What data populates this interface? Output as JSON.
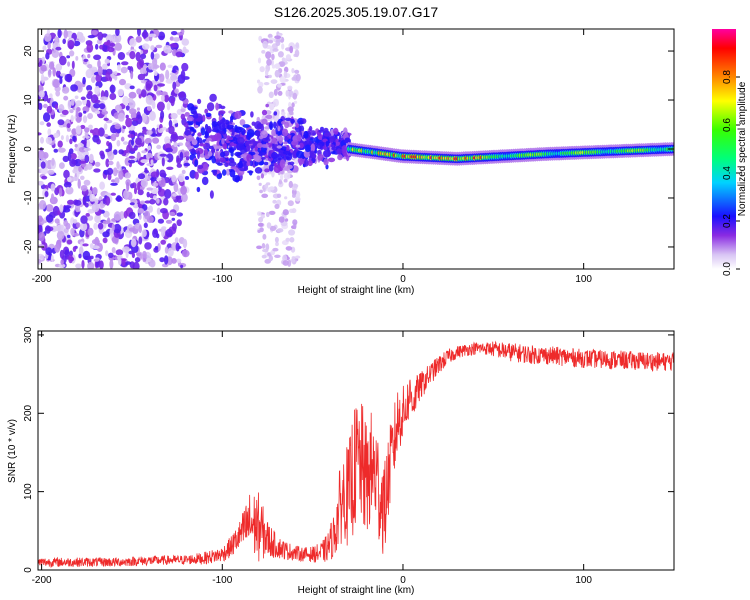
{
  "figure": {
    "title": "S126.2025.305.19.07.G17"
  },
  "chart_data": [
    {
      "type": "heatmap",
      "title": "S126.2025.305.19.07.G17",
      "xlabel": "Height of straight line (km)",
      "ylabel": "Frequency (Hz)",
      "xlim": [
        -202,
        150
      ],
      "ylim": [
        -24.5,
        24.5
      ],
      "xticks": [
        -200,
        -100,
        0,
        100
      ],
      "yticks": [
        -20,
        -10,
        0,
        10,
        20
      ],
      "colorbar": {
        "label": "Normalized spectral amplitude",
        "range": [
          0.0,
          1.0
        ],
        "ticks": [
          "0.0",
          "0.2",
          "0.4",
          "0.6",
          "0.8"
        ]
      },
      "features": [
        {
          "name": "scattered noise",
          "x_range": [
            -202,
            -120
          ],
          "freq_range": [
            -24,
            24
          ],
          "amplitude": 0.15
        },
        {
          "name": "diffuse band",
          "x_range": [
            -80,
            -58
          ],
          "freq_range": [
            -24,
            24
          ],
          "amplitude": 0.08
        },
        {
          "name": "converging region",
          "x_range": [
            -120,
            -30
          ],
          "freq_range": [
            -10,
            10
          ],
          "amplitude": 0.2
        },
        {
          "name": "coherent line",
          "x_range": [
            -30,
            150
          ],
          "freq_center": [
            0,
            -1.5,
            -2,
            -1,
            0
          ],
          "peak_amplitude": 1.0
        }
      ]
    },
    {
      "type": "line",
      "title": "",
      "xlabel": "Height of straight line (km)",
      "ylabel": "SNR (10 * v/v)",
      "xlim": [
        -202,
        150
      ],
      "ylim": [
        0,
        305
      ],
      "xticks": [
        -200,
        -100,
        0,
        100
      ],
      "yticks": [
        0,
        100,
        200,
        300
      ],
      "series": [
        {
          "name": "SNR",
          "color": "#ee2a2a",
          "x": [
            -202,
            -180,
            -160,
            -140,
            -120,
            -110,
            -100,
            -95,
            -90,
            -85,
            -80,
            -75,
            -70,
            -65,
            -60,
            -55,
            -50,
            -45,
            -42,
            -38,
            -35,
            -32,
            -30,
            -28,
            -25,
            -22,
            -20,
            -18,
            -15,
            -12,
            -10,
            -8,
            -5,
            -3,
            0,
            2,
            4,
            6,
            8,
            10,
            15,
            20,
            25,
            30,
            35,
            40,
            45,
            50,
            60,
            70,
            80,
            90,
            100,
            110,
            120,
            130,
            140,
            150
          ],
          "values": [
            10,
            10,
            10,
            12,
            13,
            15,
            20,
            30,
            45,
            60,
            55,
            40,
            30,
            25,
            22,
            20,
            20,
            22,
            28,
            45,
            80,
            100,
            90,
            120,
            140,
            130,
            110,
            130,
            120,
            90,
            80,
            120,
            160,
            190,
            200,
            210,
            225,
            215,
            230,
            235,
            250,
            262,
            272,
            278,
            281,
            283,
            283,
            282,
            278,
            275,
            274,
            272,
            270,
            269,
            268,
            267,
            266,
            266
          ],
          "noise_amplitude": [
            6,
            6,
            6,
            6,
            6,
            8,
            10,
            14,
            20,
            40,
            45,
            25,
            15,
            12,
            10,
            9,
            10,
            14,
            18,
            30,
            50,
            60,
            70,
            80,
            80,
            80,
            75,
            75,
            75,
            70,
            60,
            55,
            50,
            45,
            35,
            30,
            28,
            24,
            20,
            18,
            14,
            12,
            10,
            8,
            8,
            8,
            8,
            10,
            12,
            12,
            12,
            12,
            12,
            12,
            12,
            12,
            12,
            12
          ]
        }
      ]
    }
  ]
}
